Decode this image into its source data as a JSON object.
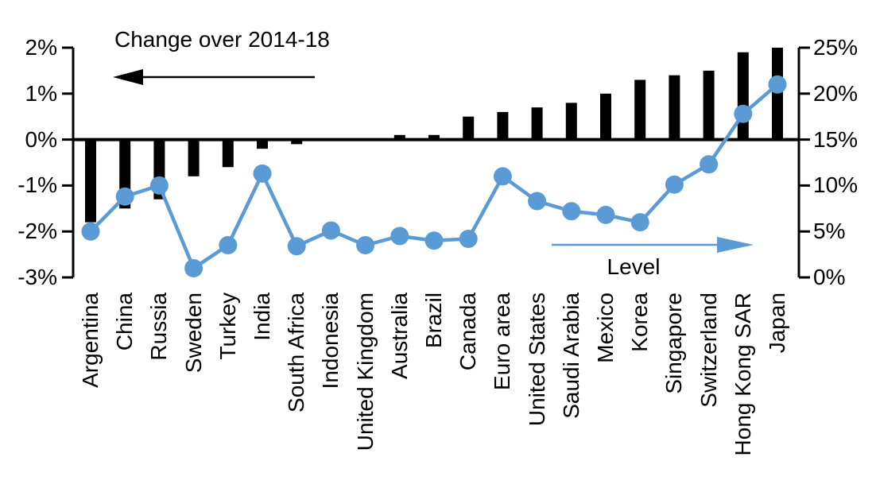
{
  "chart_data": {
    "type": "bar",
    "subtype": "dual-axis bar and line, no gridlines, arrows as series annotations",
    "title": "Change over 2014-18",
    "line_series_label": "Level",
    "categories": [
      "Argentina",
      "China",
      "Russia",
      "Sweden",
      "Turkey",
      "India",
      "South Africa",
      "Indonesia",
      "United Kingdom",
      "Australia",
      "Brazil",
      "Canada",
      "Euro area",
      "United States",
      "Saudi Arabia",
      "Mexico",
      "Korea",
      "Singapore",
      "Switzerland",
      "Hong Kong SAR",
      "Japan"
    ],
    "series": [
      {
        "name": "Change over 2014-18",
        "type": "bar",
        "axis": "left",
        "color": "#000000",
        "values": [
          -1.8,
          -1.5,
          -1.3,
          -0.8,
          -0.6,
          -0.2,
          -0.1,
          0,
          0,
          0.1,
          0.1,
          0.5,
          0.6,
          0.7,
          0.8,
          1.0,
          1.3,
          1.4,
          1.5,
          1.9,
          2.0
        ]
      },
      {
        "name": "Level",
        "type": "line",
        "axis": "right",
        "color": "#5B9BD5",
        "values": [
          5.0,
          8.8,
          10.0,
          1.0,
          3.5,
          11.3,
          3.4,
          5.1,
          3.5,
          4.5,
          4.0,
          4.2,
          11.0,
          8.3,
          7.2,
          6.8,
          6.0,
          10.1,
          12.3,
          17.8,
          21.0
        ]
      }
    ],
    "left_axis": {
      "tick_labels": [
        "2%",
        "1%",
        "0%",
        "-1%",
        "-2%",
        "-3%"
      ],
      "tick_values": [
        2,
        1,
        0,
        -1,
        -2,
        -3
      ],
      "min": -3,
      "max": 2
    },
    "right_axis": {
      "tick_labels": [
        "25%",
        "20%",
        "15%",
        "10%",
        "5%",
        "0%"
      ],
      "tick_values": [
        25,
        20,
        15,
        10,
        5,
        0
      ],
      "min": 0,
      "max": 25
    },
    "grid": false,
    "legend_position": "none"
  },
  "colors": {
    "bar": "#000000",
    "line": "#5B9BD5",
    "background": "#FFFFFF",
    "text": "#000000"
  }
}
